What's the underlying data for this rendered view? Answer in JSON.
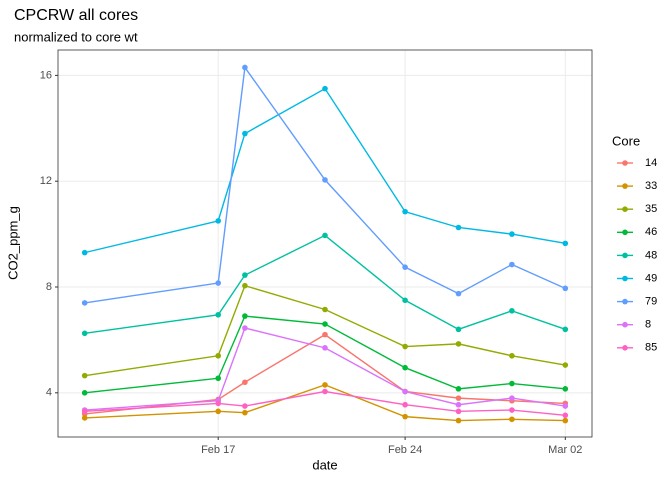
{
  "chart_data": {
    "type": "line",
    "title": "CPCRW all cores",
    "subtitle": "normalized to core wt",
    "xlabel": "date",
    "ylabel": "CO2_ppm_g",
    "legend_title": "Core",
    "legend": "right",
    "grid": true,
    "x": [
      "Feb 12",
      "Feb 17",
      "Feb 18",
      "Feb 21",
      "Feb 24",
      "Feb 26",
      "Feb 28",
      "Mar 02"
    ],
    "xlim": [
      "Feb 11",
      "Mar 03"
    ],
    "xticks": [
      "Feb 17",
      "Feb 24",
      "Mar 02"
    ],
    "ylim": [
      2.33,
      16.96
    ],
    "yticks": [
      4,
      8,
      12,
      16
    ],
    "series": [
      {
        "name": "14",
        "color": "#F8766D",
        "values": [
          3.2,
          3.75,
          4.4,
          6.2,
          4.05,
          3.8,
          3.7,
          3.6
        ]
      },
      {
        "name": "33",
        "color": "#D39200",
        "values": [
          3.05,
          3.3,
          3.25,
          4.3,
          3.1,
          2.95,
          3.0,
          2.95
        ]
      },
      {
        "name": "35",
        "color": "#93AA00",
        "values": [
          4.65,
          5.4,
          8.05,
          7.15,
          5.75,
          5.85,
          5.4,
          5.05
        ]
      },
      {
        "name": "46",
        "color": "#00BA38",
        "values": [
          4.0,
          4.55,
          6.9,
          6.6,
          4.95,
          4.15,
          4.35,
          4.15
        ]
      },
      {
        "name": "48",
        "color": "#00C19F",
        "values": [
          6.25,
          6.95,
          8.45,
          9.95,
          7.5,
          6.4,
          7.1,
          6.4
        ]
      },
      {
        "name": "49",
        "color": "#00B9E3",
        "values": [
          9.3,
          10.5,
          13.8,
          15.5,
          10.85,
          10.25,
          10.0,
          9.65
        ]
      },
      {
        "name": "79",
        "color": "#619CFF",
        "values": [
          7.4,
          8.15,
          16.3,
          12.05,
          8.75,
          7.75,
          8.85,
          7.95
        ]
      },
      {
        "name": "8",
        "color": "#DB72FB",
        "values": [
          3.35,
          3.7,
          6.45,
          5.7,
          4.05,
          3.55,
          3.8,
          3.5
        ]
      },
      {
        "name": "85",
        "color": "#FF61C3",
        "values": [
          3.3,
          3.6,
          3.5,
          4.05,
          3.55,
          3.3,
          3.35,
          3.15
        ]
      }
    ]
  }
}
